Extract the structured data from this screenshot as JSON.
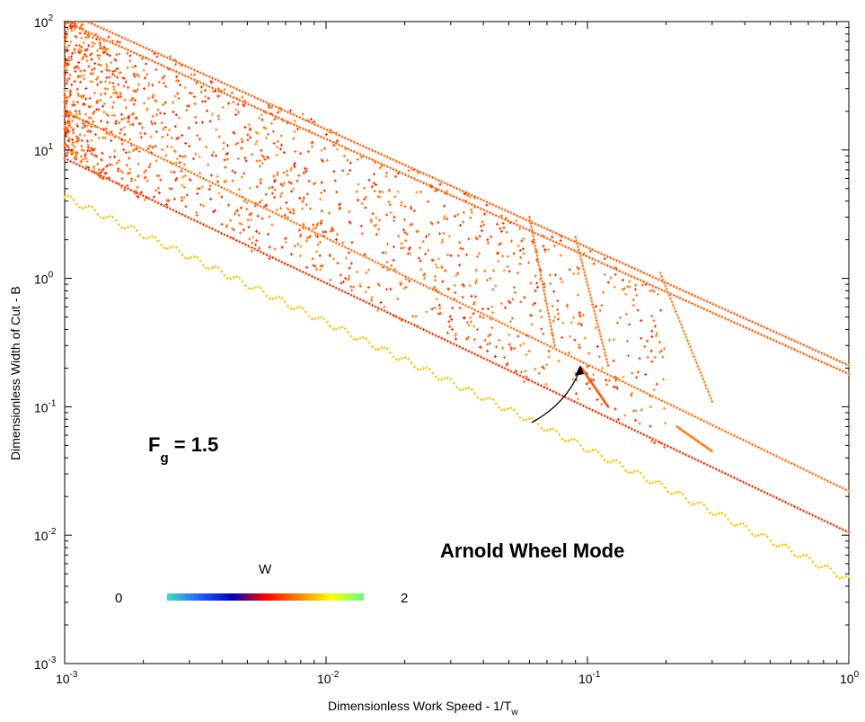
{
  "chart_data": {
    "type": "scatter",
    "title": "",
    "xlabel": "Dimensionless Work Speed - 1/T",
    "xlabel_sub": "w",
    "ylabel": "Dimensionless Width of Cut - B",
    "xscale": "log",
    "yscale": "log",
    "xlim": [
      0.001,
      1
    ],
    "ylim": [
      0.001,
      100
    ],
    "x_ticks": [
      {
        "base": "10",
        "exp": "-3",
        "value": 0.001
      },
      {
        "base": "10",
        "exp": "-2",
        "value": 0.01
      },
      {
        "base": "10",
        "exp": "-1",
        "value": 0.1
      },
      {
        "base": "10",
        "exp": "0",
        "value": 1
      }
    ],
    "y_ticks": [
      {
        "base": "10",
        "exp": "-3",
        "value": 0.001
      },
      {
        "base": "10",
        "exp": "-2",
        "value": 0.01
      },
      {
        "base": "10",
        "exp": "-1",
        "value": 0.1
      },
      {
        "base": "10",
        "exp": "0",
        "value": 1
      },
      {
        "base": "10",
        "exp": "1",
        "value": 10
      },
      {
        "base": "10",
        "exp": "2",
        "value": 100
      }
    ],
    "grid": false,
    "annotations": {
      "fg_main": "F",
      "fg_sub": "g",
      "fg_rest": " = 1.5",
      "mode": "Arnold Wheel Mode"
    },
    "colorbar": {
      "title": "W",
      "min_label": "0",
      "max_label": "2",
      "colors": [
        "#40e0c0",
        "#2060ff",
        "#0000c0",
        "#ff0000",
        "#ff8000",
        "#ffff00",
        "#60ff80"
      ]
    },
    "series": [
      {
        "kind": "line",
        "color": "#f5c400",
        "points": [
          [
            0.001,
            4.3
          ],
          [
            0.06,
            0.079
          ],
          [
            1,
            0.0045
          ]
        ],
        "wiggle": 0.05
      },
      {
        "kind": "line",
        "color": "#e83000",
        "points": [
          [
            0.001,
            8.6
          ],
          [
            1,
            0.0105
          ]
        ]
      },
      {
        "kind": "line",
        "color": "#ff6a00",
        "points": [
          [
            0.001,
            20
          ],
          [
            1,
            0.022
          ]
        ]
      },
      {
        "kind": "line",
        "color": "#ff5a00",
        "points": [
          [
            0.001,
            100
          ],
          [
            1,
            0.18
          ]
        ]
      },
      {
        "kind": "line",
        "color": "#ff5a00",
        "points": [
          [
            0.001,
            120
          ],
          [
            1,
            0.21
          ]
        ]
      },
      {
        "kind": "dip",
        "color": "#ff7a10",
        "x0": 0.19,
        "x1": 0.3,
        "y0": 1.1,
        "y1": 0.11
      },
      {
        "kind": "dip",
        "color": "#ff6a10",
        "x0": 0.09,
        "x1": 0.12,
        "y0": 2.1,
        "y1": 0.21
      },
      {
        "kind": "dip",
        "color": "#ff6a10",
        "x0": 0.06,
        "x1": 0.075,
        "y0": 3.0,
        "y1": 0.3
      },
      {
        "kind": "dip",
        "color": "#ff8020",
        "x0": 0.22,
        "x1": 0.3,
        "y0": 0.07,
        "y1": 0.045
      },
      {
        "kind": "dip",
        "color": "#ff5010",
        "x0": 0.095,
        "x1": 0.12,
        "y0": 0.2,
        "y1": 0.1
      }
    ]
  }
}
